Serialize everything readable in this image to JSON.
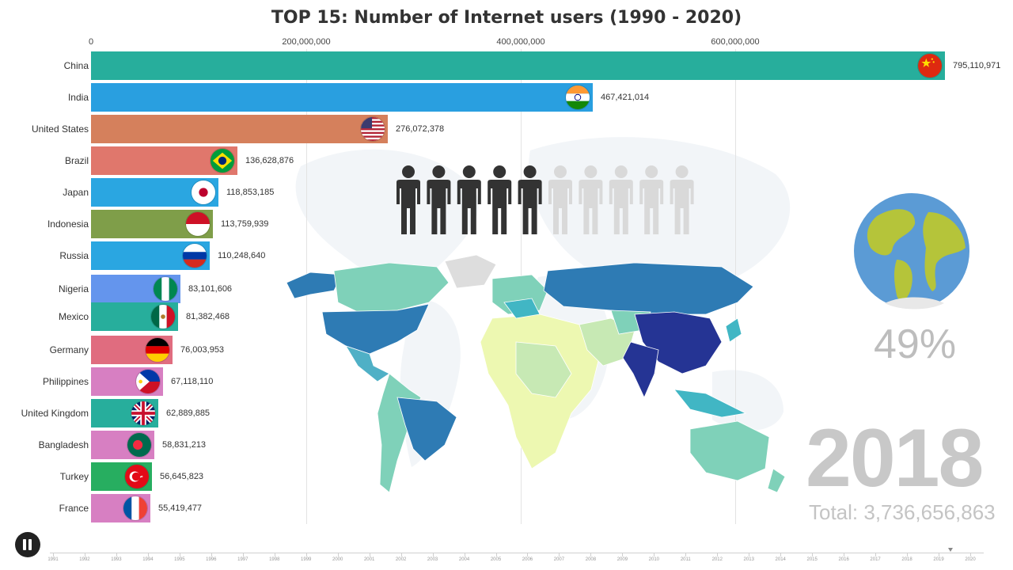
{
  "colors": {
    "title": "#333333",
    "grid": "#e3e3e3"
  },
  "header": {
    "title": "TOP 15: Number of Internet users (1990 - 2020)"
  },
  "chart_data": {
    "type": "bar",
    "orientation": "horizontal",
    "title": "TOP 15: Number of Internet users (1990 - 2020)",
    "x_ticks": [
      "0",
      "200,000,000",
      "400,000,000",
      "600,000,000"
    ],
    "x_tick_values": [
      0,
      200000000,
      400000000,
      600000000
    ],
    "xlim": [
      0,
      800000000
    ],
    "grid": true,
    "categories": [
      "China",
      "India",
      "United States",
      "Brazil",
      "Japan",
      "Indonesia",
      "Russia",
      "Nigeria",
      "Mexico",
      "Germany",
      "Philippines",
      "United Kingdom",
      "Bangladesh",
      "Turkey",
      "France"
    ],
    "values": [
      795110971,
      467421014,
      276072378,
      136628876,
      118853185,
      113759939,
      110248640,
      83101606,
      81382468,
      76003953,
      67118110,
      62889885,
      58831213,
      56645823,
      55419477
    ],
    "value_labels": [
      "795,110,971",
      "467,421,014",
      "276,072,378",
      "136,628,876",
      "118,853,185",
      "113,759,939",
      "110,248,640",
      "83,101,606",
      "81,382,468",
      "76,003,953",
      "67,118,110",
      "62,889,885",
      "58,831,213",
      "56,645,823",
      "55,419,477"
    ],
    "bar_colors": [
      "#27ae9c",
      "#299fe0",
      "#d5805c",
      "#e0776c",
      "#2aa6e1",
      "#7f9e49",
      "#2aa6e1",
      "#6495ed",
      "#27ae9c",
      "#e06c7f",
      "#d77fc2",
      "#27ae9c",
      "#d77fc2",
      "#27ae60",
      "#d77fc2"
    ],
    "flags": [
      "china-flag",
      "india-flag",
      "usa-flag",
      "brazil-flag",
      "japan-flag",
      "indonesia-flag",
      "russia-flag",
      "nigeria-flag",
      "mexico-flag",
      "germany-flag",
      "philippines-flag",
      "uk-flag",
      "bangladesh-flag",
      "turkey-flag",
      "france-flag"
    ]
  },
  "stats": {
    "people_total": 10,
    "people_filled": 5,
    "percent_label": "49%",
    "year": "2018",
    "total_label": "Total: 3,736,656,863"
  },
  "timeline": {
    "years": [
      "1991",
      "1992",
      "1993",
      "1994",
      "1995",
      "1996",
      "1997",
      "1998",
      "1999",
      "2000",
      "2001",
      "2002",
      "2003",
      "2004",
      "2005",
      "2006",
      "2007",
      "2008",
      "2009",
      "2010",
      "2011",
      "2012",
      "2013",
      "2014",
      "2015",
      "2016",
      "2017",
      "2018",
      "2019",
      "2020"
    ],
    "current_year": "2018",
    "pause_icon": "pause-icon"
  }
}
